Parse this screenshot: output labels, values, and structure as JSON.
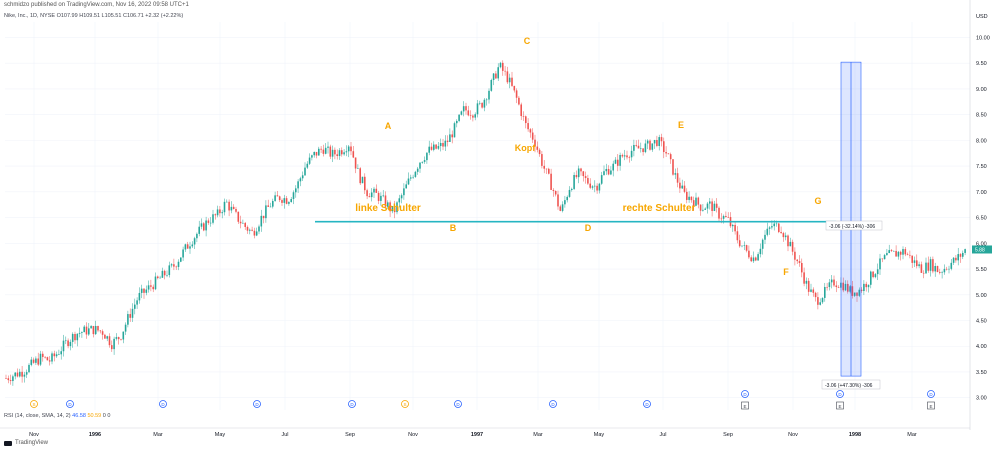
{
  "header": {
    "published": "schmidzo published on TradingView.com, Nov 16, 2022 09:58 UTC+1",
    "symbol": "Nike, Inc., 1D, NYSE",
    "ohlc": {
      "o": "O107.99",
      "h": "H109.51",
      "l": "L105.51",
      "c": "C106.71",
      "chg": "+2.32 (+2.22%)"
    }
  },
  "currency": "USD",
  "price_label": "5.88",
  "rsi": {
    "label": "RSI (14, close, SMA, 14, 2)",
    "value1": "46.58",
    "value2": "50.59",
    "value3": "0",
    "value4": "0"
  },
  "measure": {
    "top_label": "-3.06 (-32.14%) -306",
    "bottom_label": "-3.06 (+47.30%) -306"
  },
  "event_markers": [
    {
      "letter": "S",
      "x": 34,
      "color": "#f7a600"
    },
    {
      "letter": "D",
      "x": 70,
      "color": "#2962ff"
    },
    {
      "letter": "D",
      "x": 163,
      "color": "#2962ff"
    },
    {
      "letter": "D",
      "x": 257,
      "color": "#2962ff"
    },
    {
      "letter": "D",
      "x": 352,
      "color": "#2962ff"
    },
    {
      "letter": "S",
      "x": 405,
      "color": "#f7a600"
    },
    {
      "letter": "D",
      "x": 458,
      "color": "#2962ff"
    },
    {
      "letter": "D",
      "x": 553,
      "color": "#2962ff"
    },
    {
      "letter": "D",
      "x": 647,
      "color": "#2962ff"
    },
    {
      "letter": "D",
      "x": 745,
      "color": "#2962ff"
    },
    {
      "letter": "D",
      "x": 840,
      "color": "#2962ff"
    },
    {
      "letter": "D",
      "x": 931,
      "color": "#2962ff"
    }
  ],
  "earnings_markers": [
    {
      "letter": "E",
      "x": 745
    },
    {
      "letter": "E",
      "x": 840
    },
    {
      "letter": "E",
      "x": 931
    }
  ],
  "brand": "TradingView",
  "chart_data": {
    "type": "candlestick",
    "title": "Nike, Inc., 1D, NYSE",
    "ylabel": "USD",
    "ylim": [
      2.8,
      10.3
    ],
    "y_ticks": [
      "10.00",
      "9.50",
      "9.00",
      "8.50",
      "8.00",
      "7.50",
      "7.00",
      "6.50",
      "6.00",
      "5.50",
      "5.00",
      "4.50",
      "4.00",
      "3.50",
      "3.00"
    ],
    "x_ticks": [
      "Nov",
      "1996",
      "Mar",
      "May",
      "Jul",
      "Sep",
      "Nov",
      "1997",
      "Mar",
      "May",
      "Jul",
      "Sep",
      "Nov",
      "1998",
      "Mar"
    ],
    "neckline": 6.42,
    "annotations": [
      {
        "label": "A",
        "color": "#f7a600"
      },
      {
        "label": "B",
        "color": "#f7a600"
      },
      {
        "label": "C",
        "color": "#f7a600"
      },
      {
        "label": "D",
        "color": "#f7a600"
      },
      {
        "label": "E",
        "color": "#f7a600"
      },
      {
        "label": "F",
        "color": "#f7a600"
      },
      {
        "label": "G",
        "color": "#f7a600"
      },
      {
        "label": "linke Schulter",
        "color": "#f7a600"
      },
      {
        "label": "Kopf",
        "color": "#f7a600"
      },
      {
        "label": "rechte Schulter",
        "color": "#f7a600"
      }
    ],
    "measure": {
      "from": 9.52,
      "to": 3.42
    },
    "series": [
      {
        "name": "price",
        "values": [
          3.38,
          3.45,
          3.52,
          3.65,
          3.78,
          3.72,
          3.9,
          4.1,
          4.25,
          4.3,
          4.33,
          4.28,
          4.05,
          4.2,
          4.6,
          4.95,
          5.1,
          5.25,
          5.4,
          5.55,
          5.8,
          6.05,
          6.25,
          6.45,
          6.55,
          6.8,
          6.55,
          6.35,
          6.2,
          6.5,
          6.75,
          6.9,
          6.85,
          7.1,
          7.5,
          7.72,
          7.85,
          7.72,
          7.8,
          7.95,
          7.35,
          7.0,
          6.95,
          6.8,
          6.6,
          6.95,
          7.3,
          7.6,
          7.8,
          7.85,
          7.95,
          8.25,
          8.6,
          8.55,
          8.7,
          9.05,
          9.45,
          9.2,
          8.8,
          8.3,
          8.0,
          7.5,
          7.1,
          6.6,
          7.1,
          7.35,
          7.2,
          7.1,
          7.4,
          7.5,
          7.7,
          7.8,
          7.85,
          7.9,
          8.0,
          7.75,
          7.3,
          6.95,
          6.85,
          6.7,
          6.75,
          6.55,
          6.45,
          6.1,
          5.85,
          5.7,
          6.1,
          6.35,
          6.3,
          5.95,
          5.6,
          5.15,
          4.88,
          5.05,
          5.25,
          5.2,
          5.05,
          5.1,
          5.3,
          5.55,
          5.75,
          5.8,
          5.85,
          5.65,
          5.5,
          5.6,
          5.45,
          5.58,
          5.7,
          5.88
        ]
      }
    ]
  }
}
